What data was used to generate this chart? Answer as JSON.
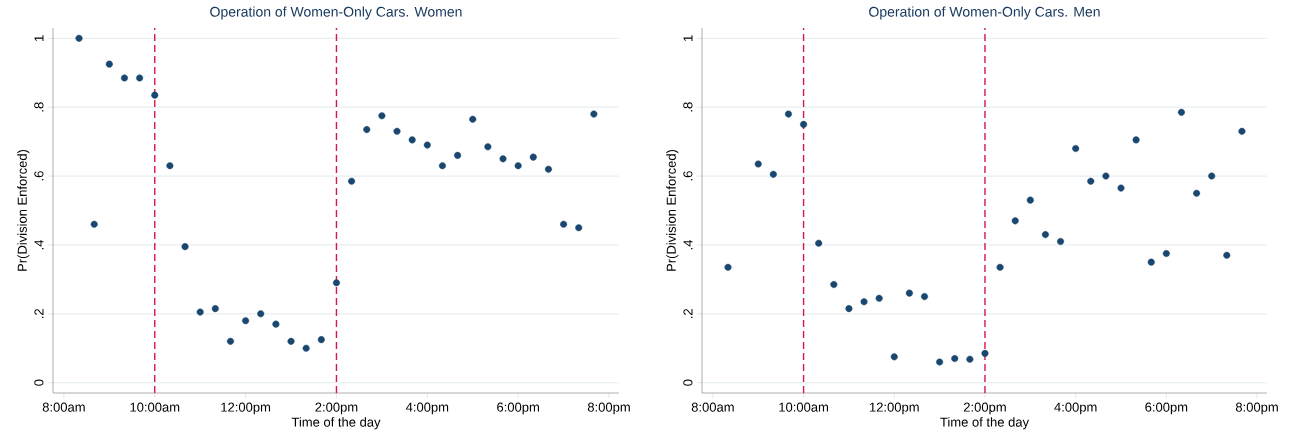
{
  "chart_data": [
    {
      "type": "scatter",
      "title": "Operation of Women-Only Cars. Women",
      "xlabel": "Time of the day",
      "ylabel": "Pr(Division Enforced)",
      "color": "#1a476f",
      "marker": "circle",
      "grid": "y",
      "x": [
        8.333,
        8.667,
        9,
        9.333,
        9.667,
        10,
        10.333,
        10.667,
        11,
        11.333,
        11.667,
        12,
        12.333,
        12.667,
        13,
        13.333,
        13.667,
        14,
        14.333,
        14.667,
        15,
        15.333,
        15.667,
        16,
        16.333,
        16.667,
        17,
        17.333,
        17.667,
        18,
        18.333,
        18.667,
        19,
        19.333,
        19.667
      ],
      "values": [
        1.0,
        0.46,
        0.925,
        0.885,
        0.885,
        0.835,
        0.63,
        0.395,
        0.205,
        0.215,
        0.12,
        0.18,
        0.2,
        0.17,
        0.12,
        0.1,
        0.125,
        0.29,
        0.585,
        0.735,
        0.775,
        0.73,
        0.705,
        0.69,
        0.63,
        0.66,
        0.765,
        0.685,
        0.65,
        0.63,
        0.655,
        0.62,
        0.46,
        0.45,
        0.78
      ],
      "ref_lines": [
        {
          "axis": "x",
          "value": 10,
          "color": "#d6184a",
          "line_style": "dashed"
        },
        {
          "axis": "x",
          "value": 14,
          "color": "#d6184a",
          "line_style": "dashed"
        }
      ],
      "xlim": [
        7.76,
        20.22
      ],
      "ylim": [
        -0.03,
        1.03
      ],
      "xticks": [
        {
          "value": 8,
          "label": "8:00am"
        },
        {
          "value": 10,
          "label": "10:00am"
        },
        {
          "value": 12,
          "label": "12:00pm"
        },
        {
          "value": 14,
          "label": "2:00pm"
        },
        {
          "value": 16,
          "label": "4:00pm"
        },
        {
          "value": 18,
          "label": "6:00pm"
        },
        {
          "value": 20,
          "label": "8:00pm"
        }
      ],
      "yticks": [
        0,
        {
          "value": 0.2,
          "label": ".2"
        },
        {
          "value": 0.4,
          "label": ".4"
        },
        {
          "value": 0.6,
          "label": ".6"
        },
        {
          "value": 0.8,
          "label": ".8"
        },
        1
      ]
    },
    {
      "type": "scatter",
      "title": "Operation of Women-Only Cars. Men",
      "xlabel": "Time of the day",
      "ylabel": "Pr(Division Enforced)",
      "color": "#1a476f",
      "marker": "circle",
      "grid": "y",
      "x": [
        8.333,
        9,
        9.333,
        9.667,
        10,
        10.333,
        10.667,
        11,
        11.333,
        11.667,
        12,
        12.333,
        12.667,
        13,
        13.333,
        13.667,
        14,
        14.333,
        14.667,
        15,
        15.333,
        15.667,
        16,
        16.333,
        16.667,
        17,
        17.333,
        17.667,
        18,
        18.333,
        18.667,
        19,
        19.333,
        19.667
      ],
      "values": [
        0.335,
        0.635,
        0.605,
        0.78,
        0.75,
        0.405,
        0.285,
        0.215,
        0.235,
        0.245,
        0.075,
        0.26,
        0.25,
        0.06,
        0.07,
        0.068,
        0.085,
        0.335,
        0.47,
        0.53,
        0.43,
        0.41,
        0.68,
        0.585,
        0.6,
        0.565,
        0.705,
        0.35,
        0.375,
        0.785,
        0.55,
        0.6,
        0.37,
        0.73
      ],
      "ref_lines": [
        {
          "axis": "x",
          "value": 10,
          "color": "#d6184a",
          "line_style": "dashed"
        },
        {
          "axis": "x",
          "value": 14,
          "color": "#d6184a",
          "line_style": "dashed"
        }
      ],
      "xlim": [
        7.76,
        20.22
      ],
      "ylim": [
        -0.03,
        1.03
      ],
      "xticks": [
        {
          "value": 8,
          "label": "8:00am"
        },
        {
          "value": 10,
          "label": "10:00am"
        },
        {
          "value": 12,
          "label": "12:00pm"
        },
        {
          "value": 14,
          "label": "2:00pm"
        },
        {
          "value": 16,
          "label": "4:00pm"
        },
        {
          "value": 18,
          "label": "6:00pm"
        },
        {
          "value": 20,
          "label": "8:00pm"
        }
      ],
      "yticks": [
        0,
        {
          "value": 0.2,
          "label": ".2"
        },
        {
          "value": 0.4,
          "label": ".4"
        },
        {
          "value": 0.6,
          "label": ".6"
        },
        {
          "value": 0.8,
          "label": ".8"
        },
        1
      ]
    }
  ]
}
